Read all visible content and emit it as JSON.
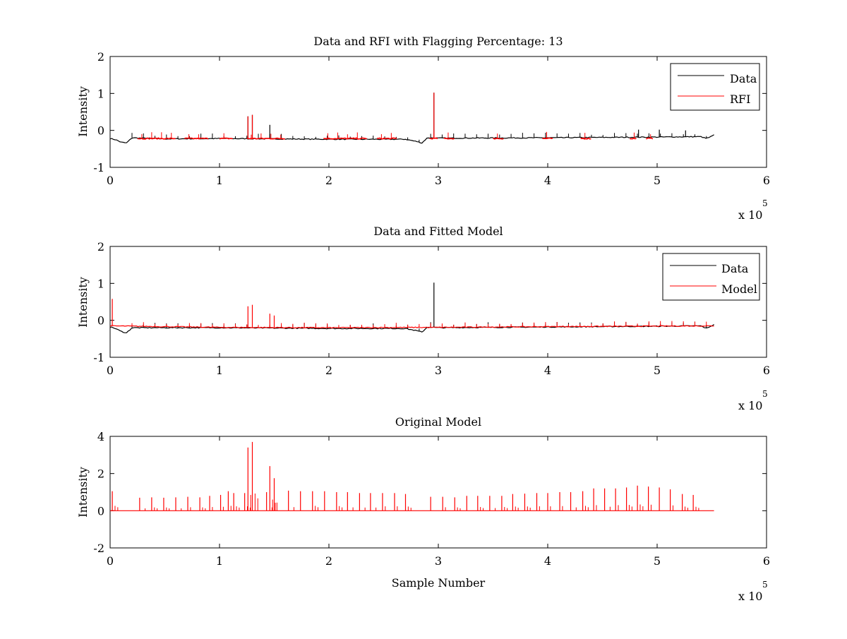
{
  "figure": {
    "panels": [
      {
        "title": "Data and RFI with Flagging Percentage: 13",
        "ylabel": "Intensity",
        "xlabel": "",
        "x_exponent": "x 10",
        "x_exponent_power": "5",
        "yticks": [
          "-1",
          "0",
          "1",
          "2"
        ],
        "xticks": [
          "0",
          "1",
          "2",
          "3",
          "4",
          "5",
          "6"
        ],
        "legend": [
          {
            "label": "Data",
            "color": "#000000"
          },
          {
            "label": "RFI",
            "color": "#ff0000"
          }
        ]
      },
      {
        "title": "Data and Fitted Model",
        "ylabel": "Intensity",
        "xlabel": "",
        "x_exponent": "x 10",
        "x_exponent_power": "5",
        "yticks": [
          "-1",
          "0",
          "1",
          "2"
        ],
        "xticks": [
          "0",
          "1",
          "2",
          "3",
          "4",
          "5",
          "6"
        ],
        "legend": [
          {
            "label": "Data",
            "color": "#000000"
          },
          {
            "label": "Model",
            "color": "#ff0000"
          }
        ]
      },
      {
        "title": "Original Model",
        "ylabel": "Intensity",
        "xlabel": "Sample Number",
        "x_exponent": "x 10",
        "x_exponent_power": "5",
        "yticks": [
          "-2",
          "0",
          "2",
          "4"
        ],
        "xticks": [
          "0",
          "1",
          "2",
          "3",
          "4",
          "5",
          "6"
        ],
        "legend": []
      }
    ]
  },
  "chart_data": [
    {
      "type": "line",
      "title": "Data and RFI with Flagging Percentage: 13",
      "xlabel": "",
      "ylabel": "Intensity",
      "xlim": [
        0,
        600000
      ],
      "ylim": [
        -1,
        2
      ],
      "series": [
        {
          "name": "Data",
          "color": "#000000",
          "baseline": [
            [
              0,
              -0.22
            ],
            [
              5000,
              -0.25
            ],
            [
              10000,
              -0.32
            ],
            [
              15000,
              -0.34
            ],
            [
              20000,
              -0.2
            ],
            [
              50000,
              -0.23
            ],
            [
              100000,
              -0.22
            ],
            [
              200000,
              -0.24
            ],
            [
              270000,
              -0.24
            ],
            [
              280000,
              -0.3
            ],
            [
              285000,
              -0.34
            ],
            [
              290000,
              -0.2
            ],
            [
              300000,
              -0.21
            ],
            [
              400000,
              -0.2
            ],
            [
              500000,
              -0.18
            ],
            [
              540000,
              -0.17
            ],
            [
              545000,
              -0.22
            ],
            [
              550000,
              -0.16
            ],
            [
              552000,
              -0.12
            ]
          ],
          "spikes": [
            [
              126000,
              0.38
            ],
            [
              130000,
              0.42
            ],
            [
              146000,
              0.15
            ],
            [
              296000,
              1.02
            ],
            [
              483000,
              0.02
            ],
            [
              502000,
              0.02
            ],
            [
              526000,
              0.0
            ]
          ]
        },
        {
          "name": "RFI",
          "color": "#ff0000",
          "segments": [
            [
              25000,
              60000
            ],
            [
              68000,
              90000
            ],
            [
              100000,
              112000
            ],
            [
              125000,
              160000
            ],
            [
              195000,
              235000
            ],
            [
              244000,
              262000
            ],
            [
              292000,
              300000
            ],
            [
              305000,
              315000
            ],
            [
              350000,
              360000
            ],
            [
              395000,
              405000
            ],
            [
              430000,
              440000
            ],
            [
              475000,
              482000
            ],
            [
              490000,
              497000
            ]
          ],
          "level": -0.22,
          "spikes": [
            [
              296000,
              1.02
            ],
            [
              126000,
              0.38
            ],
            [
              130000,
              0.42
            ]
          ]
        }
      ]
    },
    {
      "type": "line",
      "title": "Data and Fitted Model",
      "xlabel": "",
      "ylabel": "Intensity",
      "xlim": [
        0,
        600000
      ],
      "ylim": [
        -1,
        2
      ],
      "series": [
        {
          "name": "Data",
          "color": "#000000",
          "baseline": [
            [
              0,
              -0.18
            ],
            [
              5000,
              -0.22
            ],
            [
              10000,
              -0.3
            ],
            [
              15000,
              -0.34
            ],
            [
              20000,
              -0.2
            ],
            [
              50000,
              -0.2
            ],
            [
              100000,
              -0.2
            ],
            [
              200000,
              -0.22
            ],
            [
              270000,
              -0.22
            ],
            [
              280000,
              -0.28
            ],
            [
              285000,
              -0.32
            ],
            [
              290000,
              -0.18
            ],
            [
              300000,
              -0.2
            ],
            [
              400000,
              -0.18
            ],
            [
              500000,
              -0.16
            ],
            [
              540000,
              -0.15
            ],
            [
              545000,
              -0.22
            ],
            [
              550000,
              -0.14
            ],
            [
              552000,
              -0.12
            ]
          ],
          "spikes": [
            [
              296000,
              1.02
            ]
          ]
        },
        {
          "name": "Model",
          "color": "#ff0000",
          "baseline": [
            [
              0,
              -0.15
            ],
            [
              100000,
              -0.19
            ],
            [
              200000,
              -0.2
            ],
            [
              300000,
              -0.19
            ],
            [
              400000,
              -0.17
            ],
            [
              552000,
              -0.15
            ]
          ],
          "spikes": [
            [
              2000,
              0.58
            ],
            [
              126000,
              0.38
            ],
            [
              130000,
              0.42
            ],
            [
              146000,
              0.18
            ],
            [
              150000,
              0.13
            ]
          ]
        }
      ]
    },
    {
      "type": "line",
      "title": "Original Model",
      "xlabel": "Sample Number",
      "ylabel": "Intensity",
      "xlim": [
        0,
        600000
      ],
      "ylim": [
        -2,
        4
      ],
      "series": [
        {
          "name": "Model",
          "color": "#ff0000",
          "baseline": [
            [
              0,
              0.0
            ],
            [
              552000,
              0.0
            ]
          ],
          "spikes": [
            [
              2000,
              1.05
            ],
            [
              27000,
              0.7
            ],
            [
              38000,
              0.72
            ],
            [
              49000,
              0.7
            ],
            [
              60000,
              0.72
            ],
            [
              71000,
              0.75
            ],
            [
              82000,
              0.72
            ],
            [
              91000,
              0.8
            ],
            [
              101000,
              0.85
            ],
            [
              108000,
              1.05
            ],
            [
              113000,
              0.95
            ],
            [
              123000,
              0.95
            ],
            [
              126000,
              3.4
            ],
            [
              130000,
              3.7
            ],
            [
              143000,
              1.0
            ],
            [
              146000,
              2.4
            ],
            [
              150000,
              1.75
            ],
            [
              163000,
              1.08
            ],
            [
              174000,
              1.05
            ],
            [
              185000,
              1.05
            ],
            [
              196000,
              1.05
            ],
            [
              207000,
              1.0
            ],
            [
              217000,
              1.0
            ],
            [
              228000,
              0.95
            ],
            [
              238000,
              0.95
            ],
            [
              249000,
              0.95
            ],
            [
              260000,
              0.95
            ],
            [
              270000,
              0.9
            ],
            [
              293000,
              0.75
            ],
            [
              304000,
              0.75
            ],
            [
              315000,
              0.72
            ],
            [
              326000,
              0.8
            ],
            [
              336000,
              0.8
            ],
            [
              347000,
              0.8
            ],
            [
              358000,
              0.8
            ],
            [
              368000,
              0.9
            ],
            [
              379000,
              0.92
            ],
            [
              390000,
              0.95
            ],
            [
              400000,
              0.95
            ],
            [
              411000,
              1.0
            ],
            [
              421000,
              1.0
            ],
            [
              432000,
              1.05
            ],
            [
              442000,
              1.2
            ],
            [
              452000,
              1.2
            ],
            [
              462000,
              1.2
            ],
            [
              472000,
              1.25
            ],
            [
              482000,
              1.35
            ],
            [
              492000,
              1.3
            ],
            [
              502000,
              1.25
            ],
            [
              512000,
              1.15
            ],
            [
              523000,
              0.9
            ],
            [
              533000,
              0.85
            ]
          ]
        }
      ]
    }
  ]
}
